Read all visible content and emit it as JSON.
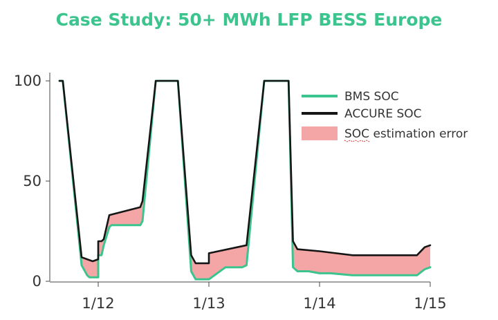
{
  "title": "Case Study: 50+ MWh LFP BESS Europe",
  "chart_data": {
    "type": "line",
    "x_ticks": [
      "1/12",
      "1/13",
      "1/14",
      "1/15"
    ],
    "x_tick_values": [
      12,
      13,
      14,
      15
    ],
    "xlim": [
      11.6,
      15.0
    ],
    "y_ticks": [
      0,
      50,
      100
    ],
    "ylim": [
      0,
      100
    ],
    "grid": false,
    "legend": "top-right",
    "series": [
      {
        "name": "BMS SOC",
        "color": "#3cc48e",
        "x": [
          11.65,
          11.68,
          11.85,
          11.9,
          11.92,
          11.95,
          12.0,
          12.0,
          12.03,
          12.05,
          12.1,
          12.12,
          12.38,
          12.4,
          12.52,
          12.57,
          12.7,
          12.72,
          12.84,
          12.88,
          12.92,
          13.0,
          13.15,
          13.2,
          13.3,
          13.34,
          13.5,
          13.55,
          13.7,
          13.72,
          13.76,
          13.8,
          13.9,
          14.0,
          14.1,
          14.3,
          14.5,
          14.88,
          14.95,
          15.0
        ],
        "y": [
          100,
          100,
          8,
          3,
          2,
          2,
          2,
          13,
          13,
          18,
          27,
          28,
          28,
          30,
          100,
          100,
          100,
          100,
          5,
          1,
          1,
          1,
          7,
          7,
          7,
          8,
          100,
          100,
          100,
          100,
          7,
          5,
          5,
          4,
          4,
          3,
          3,
          3,
          6,
          7
        ]
      },
      {
        "name": "ACCURE SOC",
        "color": "#151515",
        "x": [
          11.65,
          11.68,
          11.85,
          11.9,
          11.95,
          12.0,
          12.0,
          12.03,
          12.05,
          12.1,
          12.38,
          12.4,
          12.52,
          12.57,
          12.7,
          12.72,
          12.84,
          12.88,
          12.92,
          13.0,
          13.0,
          13.34,
          13.5,
          13.55,
          13.7,
          13.72,
          13.76,
          13.8,
          14.0,
          14.3,
          14.5,
          14.88,
          14.95,
          15.0
        ],
        "y": [
          100,
          100,
          12,
          11,
          10,
          11,
          20,
          20,
          21,
          33,
          37,
          40,
          100,
          100,
          100,
          100,
          13,
          9,
          9,
          9,
          14,
          18,
          100,
          100,
          100,
          100,
          20,
          16,
          15,
          13,
          13,
          13,
          17,
          18
        ]
      }
    ],
    "error_band": {
      "name": "SOC estimation error",
      "color": "#f4a6a6",
      "between": [
        "BMS SOC",
        "ACCURE SOC"
      ]
    }
  }
}
